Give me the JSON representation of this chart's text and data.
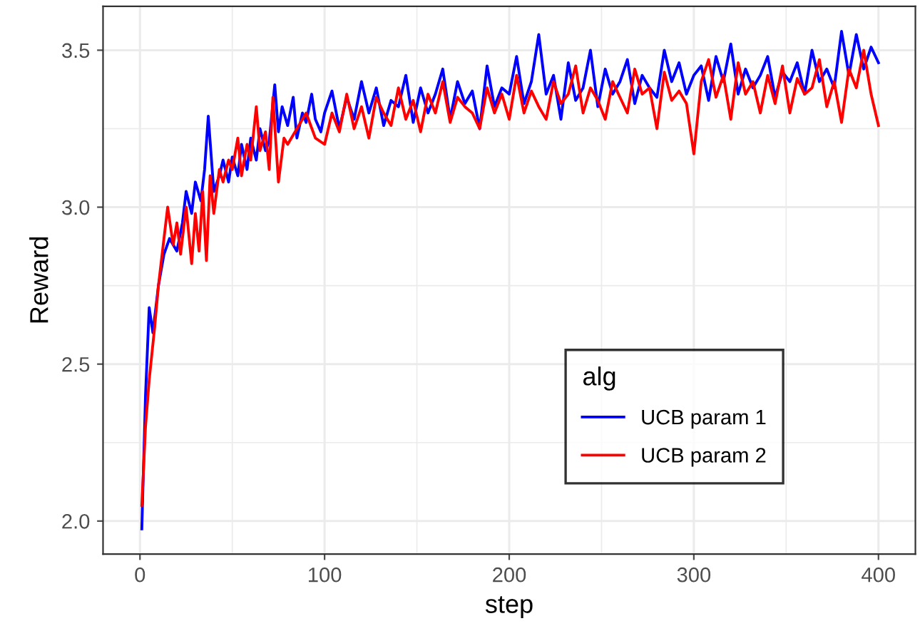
{
  "chart_data": {
    "type": "line",
    "xlabel": "step",
    "ylabel": "Reward",
    "legend_title": "alg",
    "legend": "bottom right",
    "xlim": [
      -20,
      420
    ],
    "ylim": [
      1.895,
      3.64
    ],
    "xticks": [
      0,
      100,
      200,
      300,
      400
    ],
    "yticks": [
      {
        "value": 2.0,
        "label": "2.0"
      },
      {
        "value": 2.5,
        "label": "2.5"
      },
      {
        "value": 3.0,
        "label": "3.0"
      },
      {
        "value": 3.5,
        "label": "3.5"
      }
    ],
    "grid": true,
    "line_style": "solid",
    "marker": "none",
    "series": [
      {
        "name": "UCB param 1",
        "color": "#0000ff",
        "x": [
          1,
          3,
          5,
          7,
          10,
          13,
          16,
          20,
          23,
          25,
          28,
          30,
          33,
          35,
          37,
          40,
          43,
          45,
          48,
          50,
          53,
          55,
          58,
          60,
          63,
          65,
          68,
          70,
          73,
          75,
          77,
          80,
          83,
          85,
          88,
          90,
          93,
          95,
          98,
          100,
          104,
          108,
          112,
          116,
          120,
          124,
          128,
          132,
          136,
          140,
          144,
          148,
          152,
          156,
          160,
          164,
          168,
          172,
          176,
          180,
          184,
          188,
          192,
          196,
          200,
          204,
          208,
          212,
          216,
          220,
          224,
          228,
          232,
          236,
          240,
          244,
          248,
          252,
          256,
          260,
          264,
          268,
          272,
          276,
          280,
          284,
          288,
          292,
          296,
          300,
          304,
          308,
          312,
          316,
          320,
          324,
          328,
          332,
          336,
          340,
          344,
          348,
          352,
          356,
          360,
          364,
          368,
          372,
          376,
          380,
          384,
          388,
          392,
          396,
          400
        ],
        "values": [
          1.975,
          2.4,
          2.68,
          2.6,
          2.75,
          2.85,
          2.9,
          2.86,
          2.95,
          3.05,
          2.98,
          3.08,
          3.02,
          3.12,
          3.29,
          3.05,
          3.1,
          3.15,
          3.08,
          3.16,
          3.1,
          3.2,
          3.12,
          3.22,
          3.15,
          3.25,
          3.18,
          3.21,
          3.39,
          3.24,
          3.32,
          3.26,
          3.35,
          3.22,
          3.3,
          3.27,
          3.36,
          3.28,
          3.24,
          3.3,
          3.37,
          3.25,
          3.35,
          3.28,
          3.4,
          3.3,
          3.38,
          3.26,
          3.34,
          3.32,
          3.42,
          3.27,
          3.38,
          3.3,
          3.36,
          3.44,
          3.28,
          3.4,
          3.33,
          3.37,
          3.25,
          3.45,
          3.32,
          3.38,
          3.36,
          3.48,
          3.33,
          3.4,
          3.55,
          3.36,
          3.42,
          3.28,
          3.46,
          3.34,
          3.38,
          3.5,
          3.32,
          3.44,
          3.36,
          3.4,
          3.47,
          3.33,
          3.42,
          3.38,
          3.35,
          3.5,
          3.4,
          3.46,
          3.36,
          3.42,
          3.45,
          3.34,
          3.48,
          3.4,
          3.52,
          3.36,
          3.44,
          3.38,
          3.42,
          3.48,
          3.35,
          3.43,
          3.4,
          3.46,
          3.36,
          3.5,
          3.4,
          3.44,
          3.38,
          3.56,
          3.42,
          3.55,
          3.44,
          3.51,
          3.46
        ]
      },
      {
        "name": "UCB param 2",
        "color": "#ff0000",
        "x": [
          1,
          3,
          5,
          8,
          10,
          13,
          15,
          18,
          20,
          22,
          25,
          28,
          30,
          32,
          34,
          36,
          38,
          40,
          43,
          45,
          48,
          50,
          53,
          55,
          58,
          60,
          63,
          65,
          68,
          70,
          72,
          75,
          78,
          80,
          85,
          90,
          95,
          100,
          104,
          108,
          112,
          116,
          120,
          124,
          128,
          132,
          136,
          140,
          144,
          148,
          152,
          156,
          160,
          164,
          168,
          172,
          176,
          180,
          184,
          188,
          192,
          196,
          200,
          204,
          208,
          212,
          216,
          220,
          224,
          228,
          232,
          236,
          240,
          244,
          248,
          252,
          256,
          260,
          264,
          268,
          272,
          276,
          280,
          284,
          288,
          292,
          296,
          300,
          304,
          308,
          312,
          316,
          320,
          324,
          328,
          332,
          336,
          340,
          344,
          348,
          352,
          356,
          360,
          364,
          368,
          372,
          376,
          380,
          384,
          388,
          392,
          396,
          400
        ],
        "values": [
          2.05,
          2.3,
          2.45,
          2.62,
          2.75,
          2.9,
          3.0,
          2.88,
          2.95,
          2.85,
          3.0,
          2.82,
          2.98,
          2.86,
          3.05,
          2.83,
          3.1,
          2.98,
          3.12,
          3.08,
          3.15,
          3.12,
          3.22,
          3.1,
          3.2,
          3.15,
          3.32,
          3.18,
          3.24,
          3.12,
          3.35,
          3.08,
          3.22,
          3.2,
          3.25,
          3.3,
          3.22,
          3.2,
          3.3,
          3.24,
          3.36,
          3.25,
          3.32,
          3.22,
          3.35,
          3.3,
          3.26,
          3.38,
          3.28,
          3.34,
          3.24,
          3.36,
          3.3,
          3.4,
          3.27,
          3.35,
          3.32,
          3.3,
          3.25,
          3.38,
          3.3,
          3.36,
          3.28,
          3.42,
          3.3,
          3.37,
          3.32,
          3.28,
          3.4,
          3.33,
          3.36,
          3.45,
          3.3,
          3.38,
          3.34,
          3.28,
          3.4,
          3.35,
          3.3,
          3.44,
          3.36,
          3.38,
          3.25,
          3.43,
          3.34,
          3.37,
          3.33,
          3.17,
          3.4,
          3.47,
          3.35,
          3.42,
          3.28,
          3.46,
          3.36,
          3.4,
          3.3,
          3.42,
          3.33,
          3.45,
          3.3,
          3.41,
          3.36,
          3.38,
          3.47,
          3.32,
          3.4,
          3.27,
          3.44,
          3.38,
          3.5,
          3.36,
          3.26
        ]
      }
    ]
  }
}
